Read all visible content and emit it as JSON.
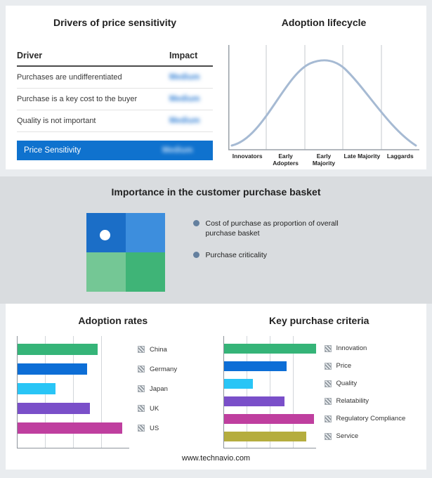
{
  "page": {
    "footer": "www.technavio.com"
  },
  "drivers": {
    "title": "Drivers of price sensitivity",
    "columns": {
      "driver": "Driver",
      "impact": "Impact"
    },
    "rows": [
      {
        "driver": "Purchases are undifferentiated",
        "impact": "Medium"
      },
      {
        "driver": "Purchase is a key cost to the buyer",
        "impact": "Medium"
      },
      {
        "driver": "Quality is not important",
        "impact": "Medium"
      }
    ],
    "highlight": {
      "label": "Price Sensitivity",
      "impact": "Medium"
    }
  },
  "basket": {
    "title": "Importance in the customer purchase basket",
    "legend": [
      "Cost of purchase as proportion of overall purchase basket",
      "Purchase criticality"
    ],
    "quadrant_colors": {
      "top_left": "#1b6ec7",
      "top_right": "#3d8edd",
      "bottom_left": "#74c795",
      "bottom_right": "#3fb477"
    }
  },
  "chart_data": [
    {
      "type": "line",
      "title": "Adoption lifecycle",
      "shape": "bell-curve",
      "x_labels": [
        "Innovators",
        "Early Adopters",
        "Early Majority",
        "Late Majority",
        "Laggards"
      ],
      "grid": true,
      "legend_position": "none",
      "curve_color": "#a6bad3"
    },
    {
      "type": "bar",
      "title": "Adoption rates",
      "orientation": "horizontal",
      "categories": [
        "China",
        "Germany",
        "Japan",
        "UK",
        "US"
      ],
      "values": [
        72,
        62,
        34,
        65,
        94
      ],
      "xlim": [
        0,
        100
      ],
      "colors": [
        "#35b478",
        "#0d6ed6",
        "#29c5f6",
        "#7a4fc9",
        "#bf3f9f"
      ],
      "legend_position": "right",
      "grid": true
    },
    {
      "type": "bar",
      "title": "Key purchase criteria",
      "orientation": "horizontal",
      "categories": [
        "Innovation",
        "Price",
        "Quality",
        "Relatability",
        "Regulatory Compliance",
        "Service"
      ],
      "values": [
        100,
        68,
        32,
        66,
        98,
        90
      ],
      "xlim": [
        0,
        100
      ],
      "colors": [
        "#35b478",
        "#0d6ed6",
        "#29c5f6",
        "#7a4fc9",
        "#bf3f9f",
        "#b5ad3e"
      ],
      "legend_position": "right",
      "grid": true
    }
  ]
}
